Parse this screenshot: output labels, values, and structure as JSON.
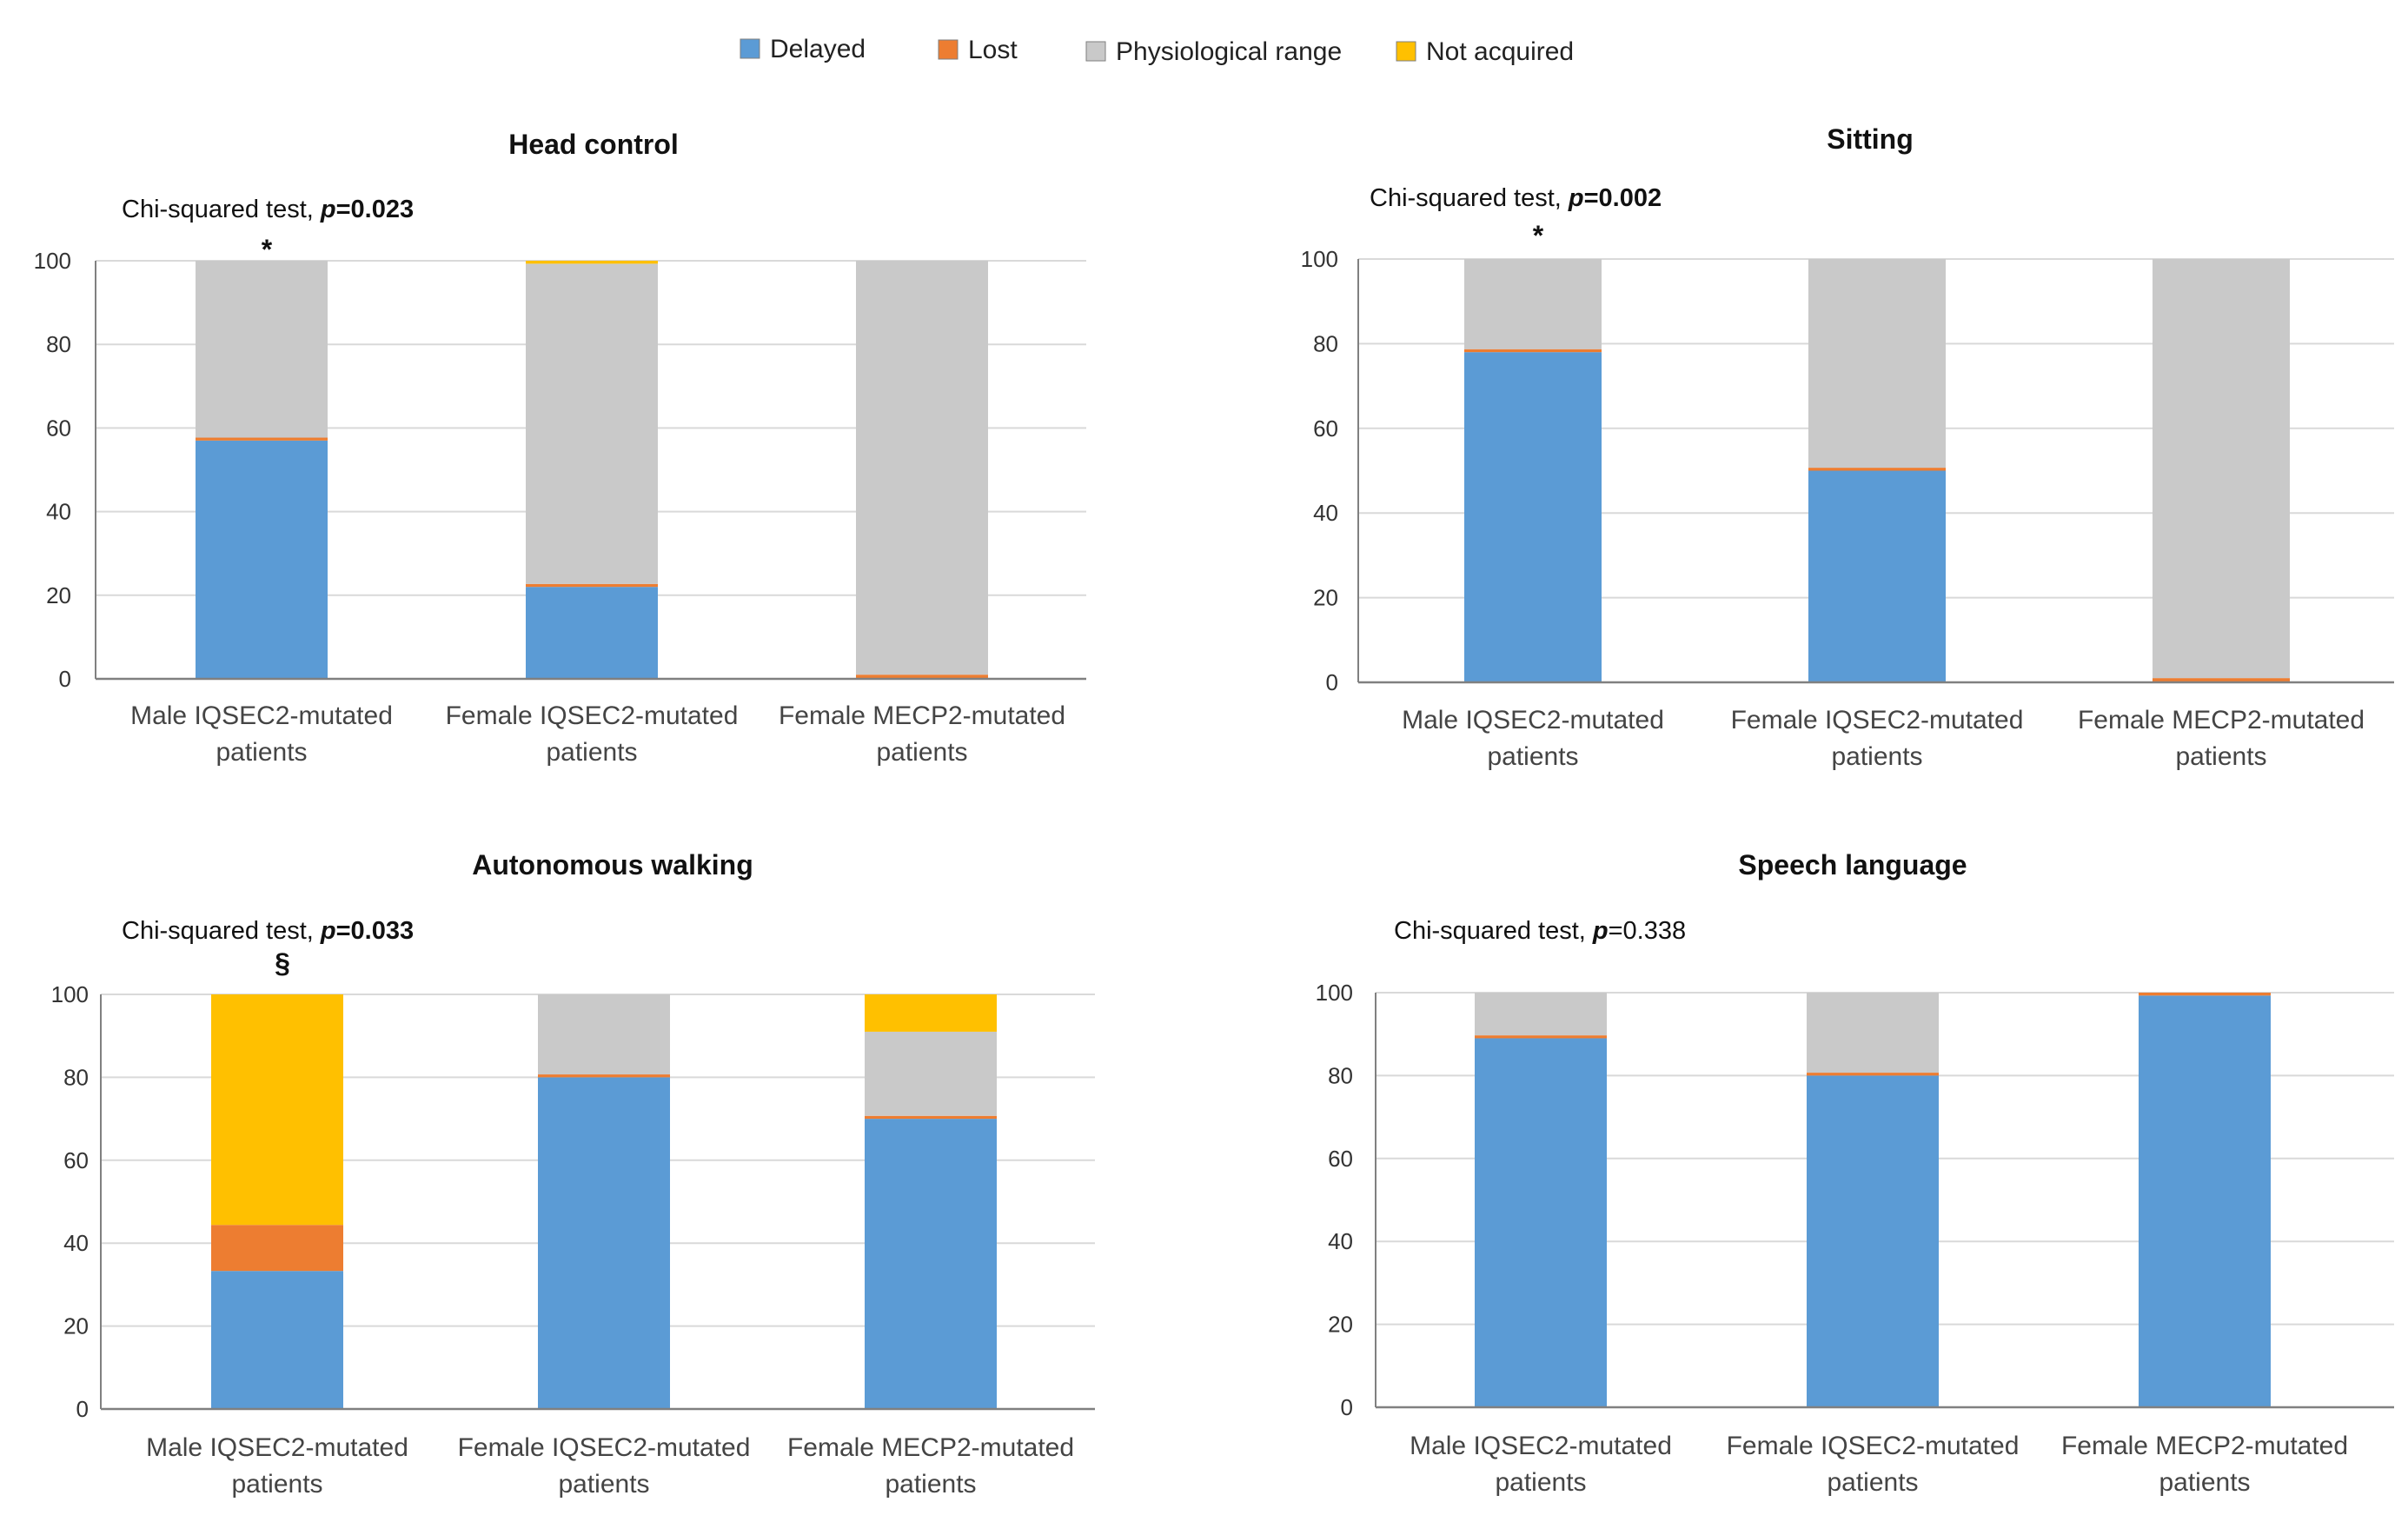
{
  "legend": {
    "placement": "top-center",
    "items": [
      {
        "label": "Delayed",
        "color": "#5B9BD5"
      },
      {
        "label": "Lost",
        "color": "#ED7D31"
      },
      {
        "label": "Physiological range",
        "color": "#C9C9C9"
      },
      {
        "label": "Not acquired",
        "color": "#FFC000"
      }
    ]
  },
  "chart_data": [
    {
      "type": "bar",
      "stacked": true,
      "title": "Head control",
      "annotation": {
        "prefix": "Chi-squared test, ",
        "p_label": "p",
        "p_value": "=0.023",
        "p_bold": true
      },
      "marker": {
        "text": "*",
        "category_index": 0
      },
      "categories": [
        [
          "Male IQSEC2-mutated",
          "patients"
        ],
        [
          "Female IQSEC2-mutated",
          "patients"
        ],
        [
          "Female MECP2-mutated",
          "patients"
        ]
      ],
      "ylim": [
        0,
        100
      ],
      "yticks": [
        0,
        20,
        40,
        60,
        80,
        100
      ],
      "grid": true,
      "series": [
        {
          "name": "Delayed",
          "color": "#5B9BD5",
          "values": [
            57,
            22,
            0
          ]
        },
        {
          "name": "Lost",
          "color": "#ED7D31",
          "values": [
            0.7,
            0.7,
            1
          ]
        },
        {
          "name": "Physiological range",
          "color": "#C9C9C9",
          "values": [
            42.3,
            76.6,
            99
          ]
        },
        {
          "name": "Not acquired",
          "color": "#FFC000",
          "values": [
            0,
            0.7,
            0
          ]
        }
      ]
    },
    {
      "type": "bar",
      "stacked": true,
      "title": "Sitting",
      "annotation": {
        "prefix": "Chi-squared test, ",
        "p_label": "p",
        "p_value": "=0.002",
        "p_bold": true
      },
      "marker": {
        "text": "*",
        "category_index": 0
      },
      "categories": [
        [
          "Male IQSEC2-mutated",
          "patients"
        ],
        [
          "Female IQSEC2-mutated",
          "patients"
        ],
        [
          "Female MECP2-mutated",
          "patients"
        ]
      ],
      "ylim": [
        0,
        100
      ],
      "yticks": [
        0,
        20,
        40,
        60,
        80,
        100
      ],
      "grid": true,
      "series": [
        {
          "name": "Delayed",
          "color": "#5B9BD5",
          "values": [
            78,
            50,
            0
          ]
        },
        {
          "name": "Lost",
          "color": "#ED7D31",
          "values": [
            0.7,
            0.7,
            1
          ]
        },
        {
          "name": "Physiological range",
          "color": "#C9C9C9",
          "values": [
            21.3,
            49.3,
            99
          ]
        },
        {
          "name": "Not acquired",
          "color": "#FFC000",
          "values": [
            0,
            0,
            0
          ]
        }
      ]
    },
    {
      "type": "bar",
      "stacked": true,
      "title": "Autonomous walking",
      "annotation": {
        "prefix": "Chi-squared test, ",
        "p_label": "p",
        "p_value": "=0.033",
        "p_bold": true
      },
      "marker": {
        "text": "§",
        "category_index": 0
      },
      "categories": [
        [
          "Male IQSEC2-mutated",
          "patients"
        ],
        [
          "Female IQSEC2-mutated",
          "patients"
        ],
        [
          "Female MECP2-mutated",
          "patients"
        ]
      ],
      "ylim": [
        0,
        100
      ],
      "yticks": [
        0,
        20,
        40,
        60,
        80,
        100
      ],
      "grid": true,
      "series": [
        {
          "name": "Delayed",
          "color": "#5B9BD5",
          "values": [
            33.3,
            80,
            70
          ]
        },
        {
          "name": "Lost",
          "color": "#ED7D31",
          "values": [
            11.1,
            0.7,
            0.7
          ]
        },
        {
          "name": "Physiological range",
          "color": "#C9C9C9",
          "values": [
            0,
            19.3,
            20.3
          ]
        },
        {
          "name": "Not acquired",
          "color": "#FFC000",
          "values": [
            55.6,
            0,
            9
          ]
        }
      ]
    },
    {
      "type": "bar",
      "stacked": true,
      "title": "Speech language",
      "annotation": {
        "prefix": "Chi-squared test, ",
        "p_label": "p",
        "p_value": "=0.338",
        "p_bold": false
      },
      "categories": [
        [
          "Male IQSEC2-mutated",
          "patients"
        ],
        [
          "Female IQSEC2-mutated",
          "patients"
        ],
        [
          "Female MECP2-mutated",
          "patients"
        ]
      ],
      "ylim": [
        0,
        100
      ],
      "yticks": [
        0,
        20,
        40,
        60,
        80,
        100
      ],
      "grid": true,
      "series": [
        {
          "name": "Delayed",
          "color": "#5B9BD5",
          "values": [
            89,
            80,
            99.3
          ]
        },
        {
          "name": "Lost",
          "color": "#ED7D31",
          "values": [
            0.7,
            0.7,
            0.7
          ]
        },
        {
          "name": "Physiological range",
          "color": "#C9C9C9",
          "values": [
            10.3,
            19.3,
            0
          ]
        },
        {
          "name": "Not acquired",
          "color": "#FFC000",
          "values": [
            0,
            0,
            0
          ]
        }
      ]
    }
  ]
}
